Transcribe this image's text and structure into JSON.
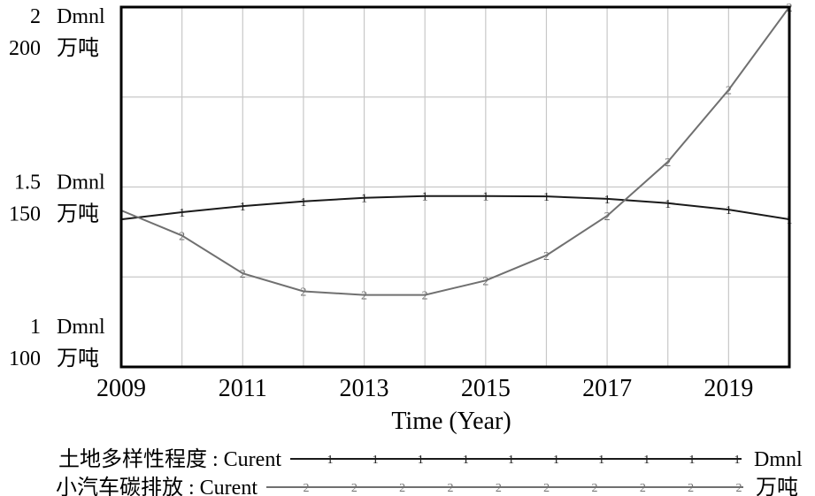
{
  "chart_data": {
    "type": "line",
    "xlabel": "Time (Year)",
    "xlim": [
      2009,
      2020
    ],
    "x_ticks": [
      "2009",
      "2011",
      "2013",
      "2015",
      "2017",
      "2019"
    ],
    "x_tick_values": [
      2009,
      2011,
      2013,
      2015,
      2017,
      2019
    ],
    "grid": true,
    "axes": [
      {
        "ylim": [
          1,
          2
        ],
        "unit": "Dmnl",
        "ticks": [
          {
            "value": 2,
            "label": "2"
          },
          {
            "value": 1.5,
            "label": "1.5"
          },
          {
            "value": 1,
            "label": "1"
          }
        ]
      },
      {
        "ylim": [
          100,
          200
        ],
        "unit": "万吨",
        "ticks": [
          {
            "value": 200,
            "label": "200"
          },
          {
            "value": 150,
            "label": "150"
          },
          {
            "value": 100,
            "label": "100"
          }
        ]
      }
    ],
    "series": [
      {
        "name": "土地多样性程度",
        "run": "Curent",
        "unit": "Dmnl",
        "marker": "1",
        "axis": 0,
        "color": "#1a1a1a",
        "x": [
          2009,
          2010,
          2011,
          2012,
          2013,
          2014,
          2015,
          2016,
          2017,
          2018,
          2019,
          2020
        ],
        "values": [
          1.41,
          1.43,
          1.447,
          1.46,
          1.47,
          1.475,
          1.475,
          1.474,
          1.467,
          1.455,
          1.437,
          1.41
        ]
      },
      {
        "name": "小汽车碳排放",
        "run": "Curent",
        "unit": "万吨",
        "marker": "2",
        "axis": 1,
        "color": "#707070",
        "x": [
          2009,
          2010,
          2011,
          2012,
          2013,
          2014,
          2015,
          2016,
          2017,
          2018,
          2019,
          2020
        ],
        "values": [
          143.5,
          136.5,
          126,
          121,
          120,
          120,
          124,
          131,
          142,
          157,
          177,
          200
        ]
      }
    ],
    "legend": [
      {
        "label": "土地多样性程度 : Curent",
        "unit": "Dmnl"
      },
      {
        "label": "小汽车碳排放 : Curent",
        "unit": "万吨"
      }
    ]
  }
}
